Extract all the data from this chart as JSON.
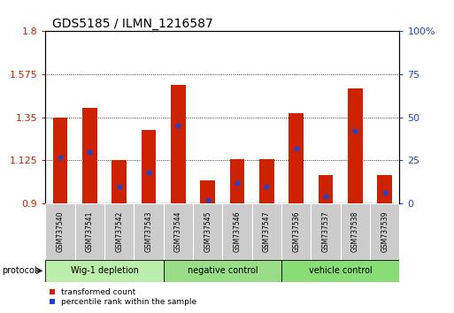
{
  "title": "GDS5185 / ILMN_1216587",
  "samples": [
    "GSM737540",
    "GSM737541",
    "GSM737542",
    "GSM737543",
    "GSM737544",
    "GSM737545",
    "GSM737546",
    "GSM737547",
    "GSM737536",
    "GSM737537",
    "GSM737538",
    "GSM737539"
  ],
  "red_values": [
    1.35,
    1.4,
    1.125,
    1.285,
    1.52,
    1.02,
    1.13,
    1.13,
    1.37,
    1.05,
    1.5,
    1.05
  ],
  "blue_pct": [
    27,
    30,
    10,
    18,
    45,
    2,
    12,
    10,
    32,
    4,
    42,
    6
  ],
  "ylim_left": [
    0.9,
    1.8
  ],
  "ylim_right": [
    0,
    100
  ],
  "yticks_left": [
    0.9,
    1.125,
    1.35,
    1.575,
    1.8
  ],
  "yticks_right": [
    0,
    25,
    50,
    75,
    100
  ],
  "groups": [
    {
      "label": "Wig-1 depletion",
      "start": 0,
      "end": 4,
      "color": "#bbeeaa"
    },
    {
      "label": "negative control",
      "start": 4,
      "end": 8,
      "color": "#99dd88"
    },
    {
      "label": "vehicle control",
      "start": 8,
      "end": 12,
      "color": "#88dd77"
    }
  ],
  "protocol_label": "protocol",
  "legend_red": "transformed count",
  "legend_blue": "percentile rank within the sample",
  "bar_color": "#cc2200",
  "blue_color": "#2244cc",
  "background_color": "#ffffff",
  "bar_bottom": 0.9,
  "bar_width": 0.5
}
